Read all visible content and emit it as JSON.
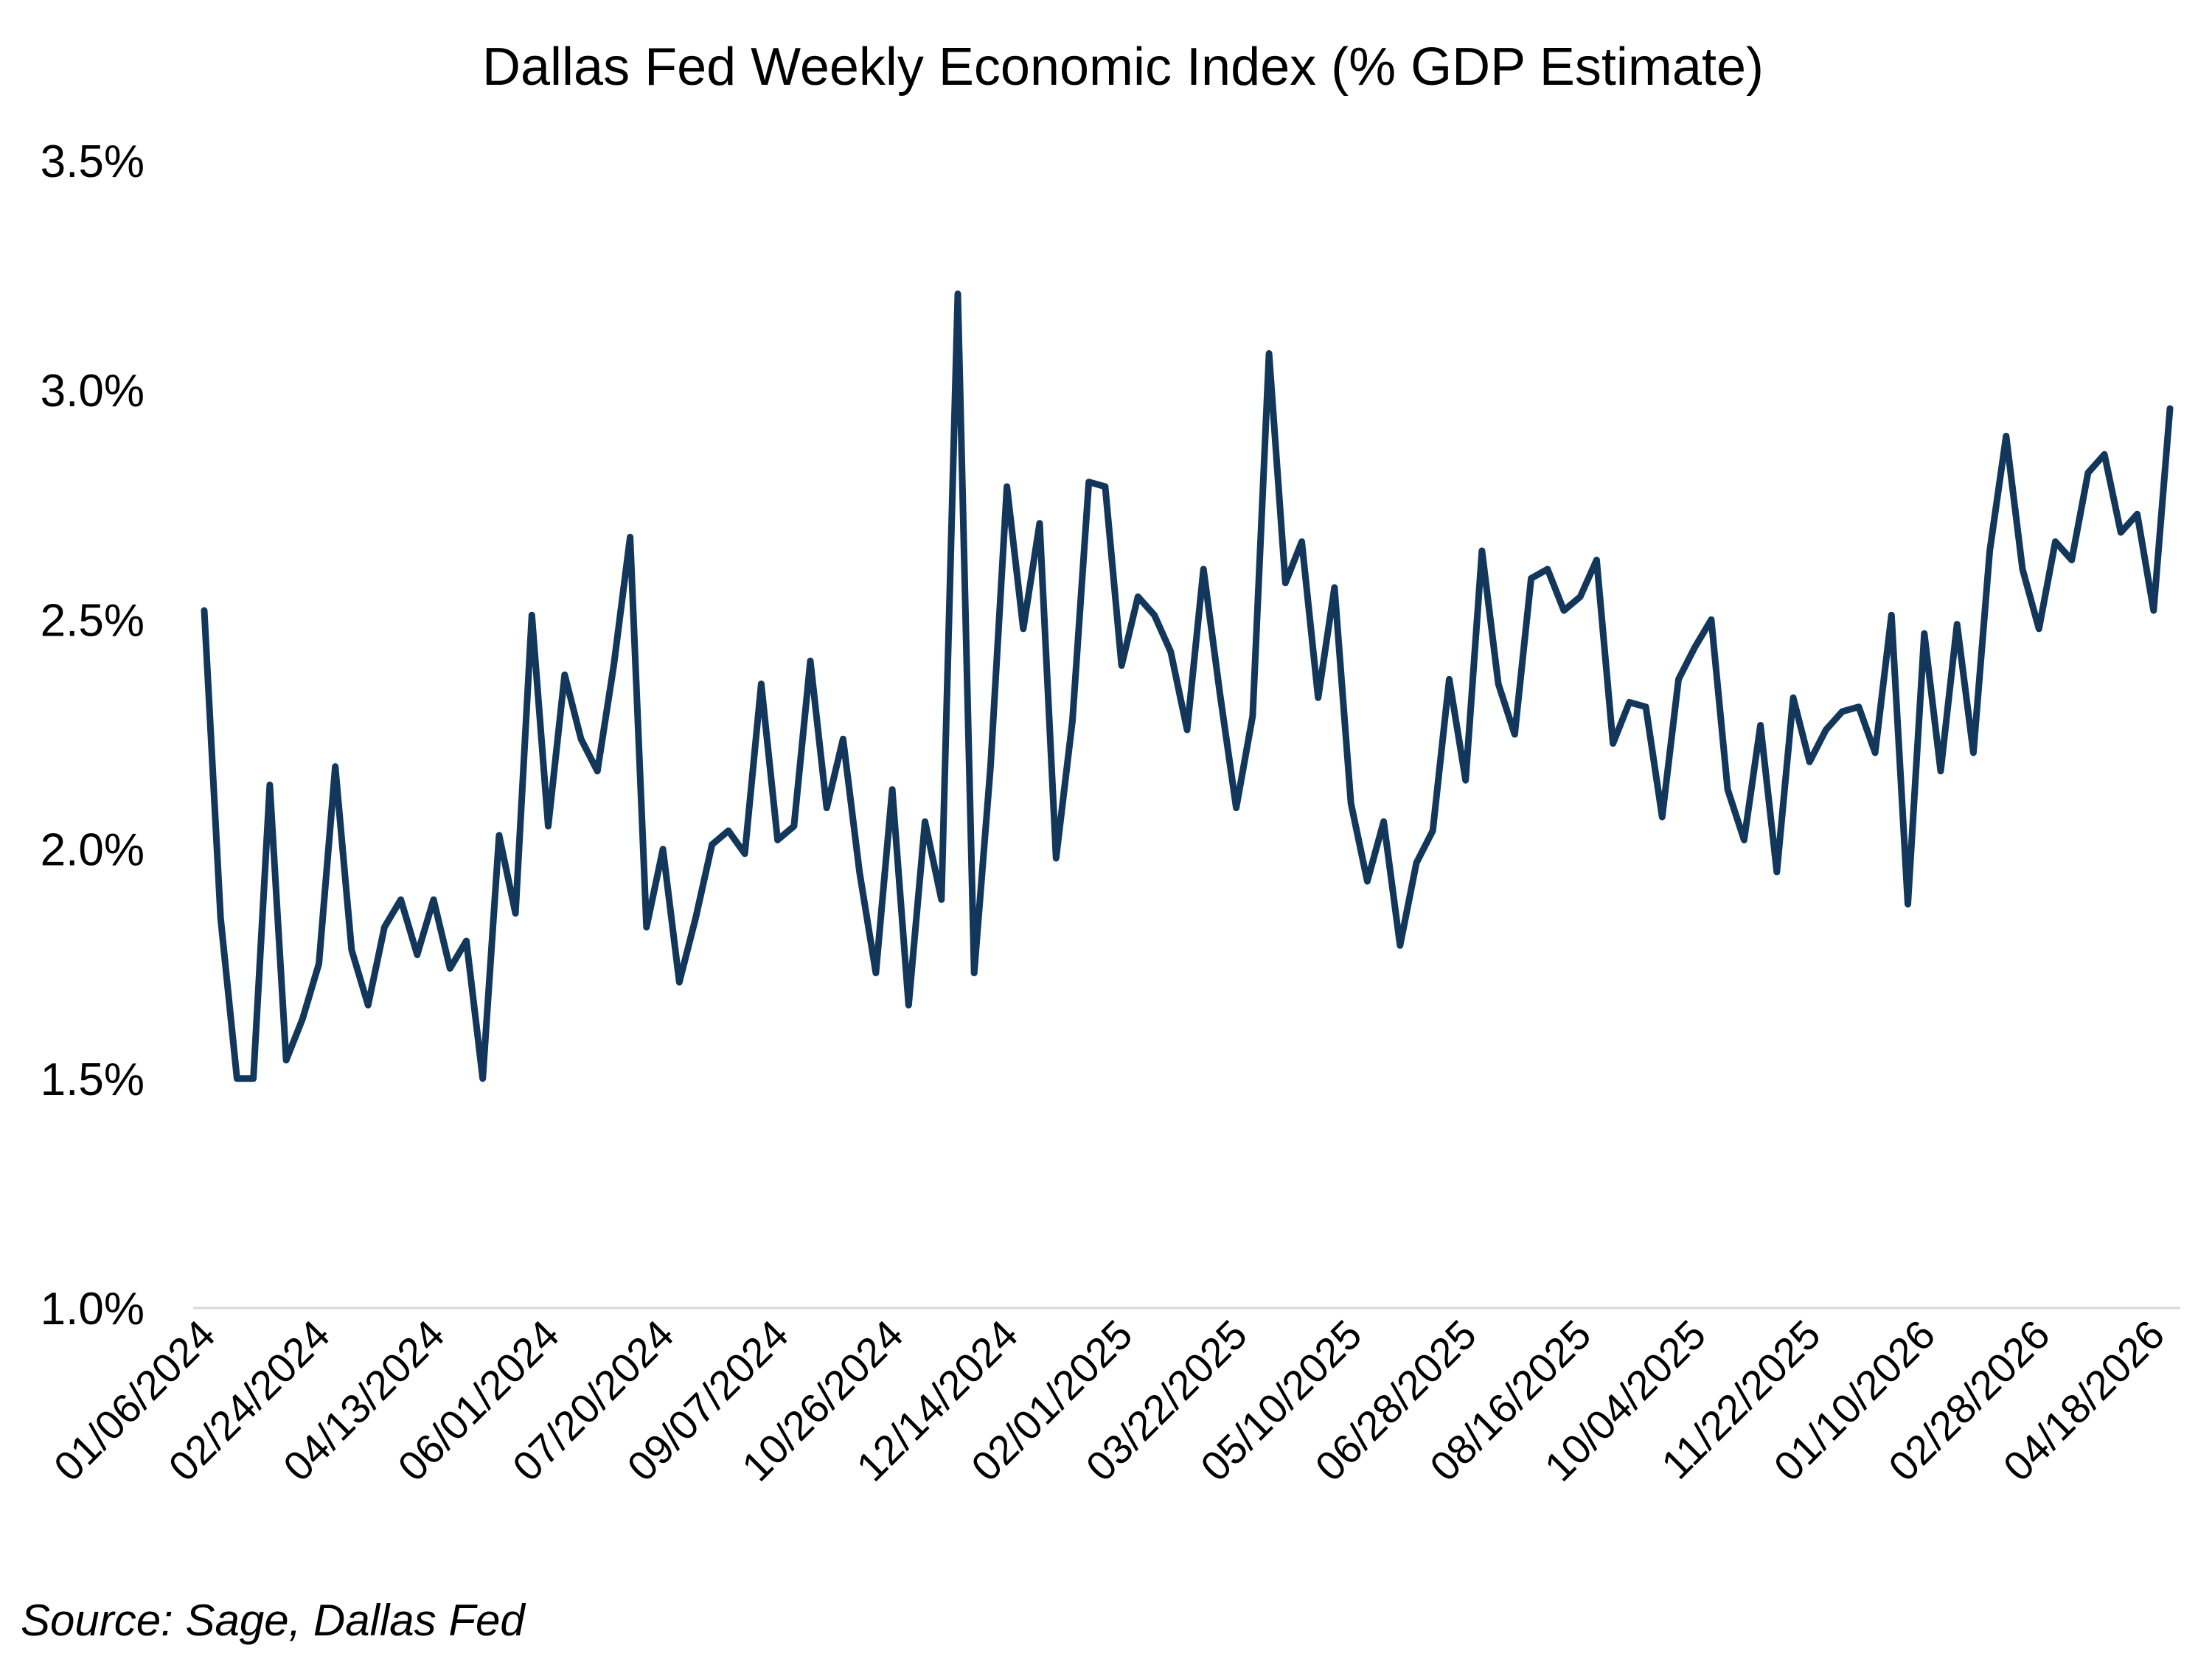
{
  "chart_data": {
    "type": "line",
    "title": "Dallas Fed Weekly Economic Index (% GDP Estimate)",
    "source": "Source: Sage, Dallas Fed",
    "xlabel": "",
    "ylabel": "",
    "ylim": [
      1.0,
      3.5
    ],
    "grid": false,
    "line_color": "#12375A",
    "axis_color": "#D9D9D9",
    "y_ticks": [
      {
        "value": 1.0,
        "label": "1.0%"
      },
      {
        "value": 1.5,
        "label": "1.5%"
      },
      {
        "value": 2.0,
        "label": "2.0%"
      },
      {
        "value": 2.5,
        "label": "2.5%"
      },
      {
        "value": 3.0,
        "label": "3.0%"
      },
      {
        "value": 3.5,
        "label": "3.5%"
      }
    ],
    "x_ticks": [
      {
        "x": "2024-01-06",
        "label": "01/06/2024"
      },
      {
        "x": "2024-02-24",
        "label": "02/24/2024"
      },
      {
        "x": "2024-04-13",
        "label": "04/13/2024"
      },
      {
        "x": "2024-06-01",
        "label": "06/01/2024"
      },
      {
        "x": "2024-07-20",
        "label": "07/20/2024"
      },
      {
        "x": "2024-09-07",
        "label": "09/07/2024"
      },
      {
        "x": "2024-10-26",
        "label": "10/26/2024"
      },
      {
        "x": "2024-12-14",
        "label": "12/14/2024"
      },
      {
        "x": "2025-02-01",
        "label": "02/01/2025"
      },
      {
        "x": "2025-03-22",
        "label": "03/22/2025"
      },
      {
        "x": "2025-05-10",
        "label": "05/10/2025"
      },
      {
        "x": "2025-06-28",
        "label": "06/28/2025"
      },
      {
        "x": "2025-08-16",
        "label": "08/16/2025"
      },
      {
        "x": "2025-10-04",
        "label": "10/04/2025"
      },
      {
        "x": "2025-11-22",
        "label": "11/22/2025"
      },
      {
        "x": "2026-01-10",
        "label": "01/10/2026"
      },
      {
        "x": "2026-02-28",
        "label": "02/28/2026"
      },
      {
        "x": "2026-04-18",
        "label": "04/18/2026"
      }
    ],
    "series": [
      {
        "x_start": "2024-01-06",
        "x_step": "weekly",
        "values": [
          2.52,
          1.85,
          1.5,
          1.5,
          2.14,
          1.54,
          1.63,
          1.75,
          2.18,
          1.78,
          1.66,
          1.83,
          1.89,
          1.77,
          1.89,
          1.74,
          1.8,
          1.5,
          2.03,
          1.86,
          2.51,
          2.05,
          2.38,
          2.24,
          2.17,
          2.4,
          2.68,
          1.83,
          2.0,
          1.71,
          1.85,
          2.01,
          2.04,
          1.99,
          2.36,
          2.02,
          2.05,
          2.41,
          2.09,
          2.24,
          1.95,
          1.73,
          2.13,
          1.66,
          2.06,
          1.89,
          3.21,
          1.73,
          2.18,
          2.79,
          2.48,
          2.71,
          1.98,
          2.28,
          2.8,
          2.79,
          2.4,
          2.55,
          2.51,
          2.43,
          2.26,
          2.61,
          2.34,
          2.09,
          2.29,
          3.08,
          2.58,
          2.67,
          2.33,
          2.57,
          2.1,
          1.93,
          2.06,
          1.79,
          1.97,
          2.04,
          2.37,
          2.15,
          2.65,
          2.36,
          2.25,
          2.59,
          2.61,
          2.52,
          2.55,
          2.63,
          2.23,
          2.32,
          2.31,
          2.07,
          2.37,
          2.44,
          2.5,
          2.13,
          2.02,
          2.27,
          1.95,
          2.33,
          2.19,
          2.26,
          2.3,
          2.31,
          2.21,
          2.51,
          1.88,
          2.47,
          2.17,
          2.49,
          2.21,
          2.65,
          2.9,
          2.61,
          2.48,
          2.67,
          2.63,
          2.82,
          2.86,
          2.69,
          2.73,
          2.52,
          2.96
        ]
      }
    ]
  }
}
